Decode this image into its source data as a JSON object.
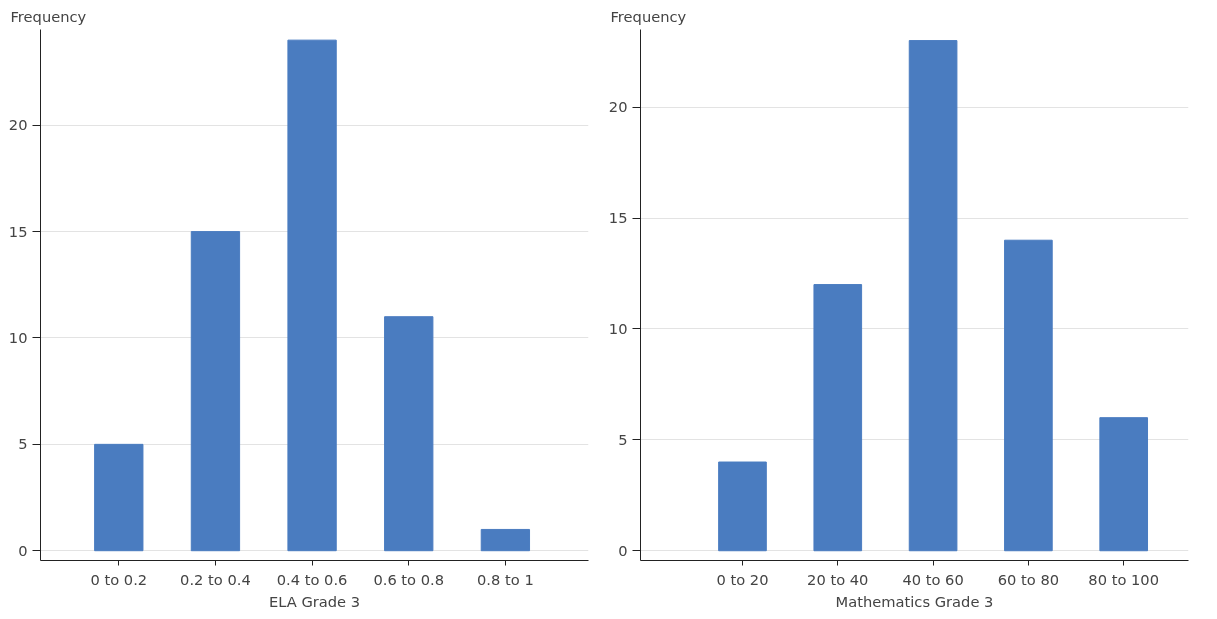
{
  "chart_data": [
    {
      "type": "bar",
      "ylabel": "Frequency",
      "xlabel": "ELA Grade 3",
      "categories": [
        "0 to 0.2",
        "0.2 to 0.4",
        "0.4 to 0.6",
        "0.6 to 0.8",
        "0.8 to 1"
      ],
      "series": [
        {
          "color": "#4a7cc0",
          "values": [
            5,
            15,
            24,
            11,
            1
          ]
        }
      ],
      "ylim": [
        -0.46,
        24.5
      ],
      "yticks": [
        0,
        5,
        10,
        15,
        20
      ],
      "grid": "y"
    },
    {
      "type": "bar",
      "ylabel": "Frequency",
      "xlabel": "Mathematics Grade 3",
      "categories": [
        "0 to 20",
        "20 to 40",
        "40 to 60",
        "60 to 80",
        "80 to 100"
      ],
      "series": [
        {
          "color": "#4a7cc0",
          "values": [
            4,
            12,
            23,
            14,
            6
          ]
        }
      ],
      "ylim": [
        -0.44,
        23.5
      ],
      "yticks": [
        0,
        5,
        10,
        15,
        20
      ],
      "grid": "y"
    }
  ]
}
